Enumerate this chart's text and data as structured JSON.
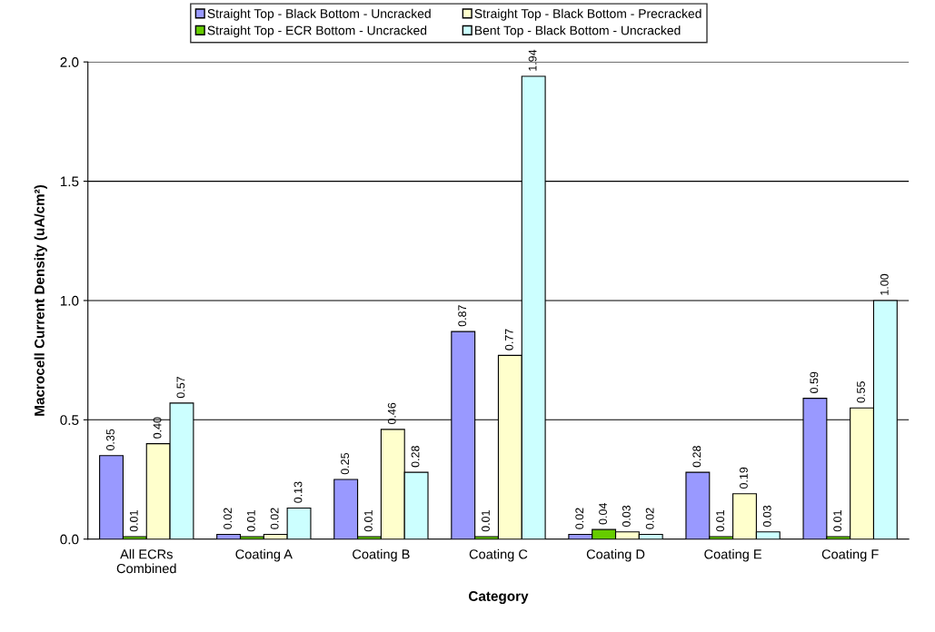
{
  "chart_data": {
    "type": "bar",
    "xlabel": "Category",
    "ylabel": "Macrocell Current Density (uA/cm²)",
    "categories": [
      "All ECRs\nCombined",
      "Coating A",
      "Coating B",
      "Coating C",
      "Coating D",
      "Coating E",
      "Coating F"
    ],
    "series": [
      {
        "name": "Straight Top - Black Bottom - Uncracked",
        "color": "#9999ff",
        "values": [
          0.35,
          0.02,
          0.25,
          0.87,
          0.02,
          0.28,
          0.59
        ],
        "value_labels": [
          "0.35",
          "0.02",
          "0.25",
          "0.87",
          "0.02",
          "0.28",
          "0.59"
        ]
      },
      {
        "name": "Straight Top - ECR Bottom - Uncracked",
        "color": "#66cc00",
        "values": [
          0.01,
          0.01,
          0.01,
          0.01,
          0.04,
          0.01,
          0.01
        ],
        "value_labels": [
          "0.01",
          "0.01",
          "0.01",
          "0.01",
          "0.04",
          "0.01",
          "0.01"
        ]
      },
      {
        "name": "Straight Top - Black Bottom - Precracked",
        "color": "#ffffcc",
        "values": [
          0.4,
          0.02,
          0.46,
          0.77,
          0.03,
          0.19,
          0.55
        ],
        "value_labels": [
          "0.40",
          "0.02",
          "0.46",
          "0.77",
          "0.03",
          "0.19",
          "0.55"
        ]
      },
      {
        "name": "Bent Top - Black Bottom - Uncracked",
        "color": "#ccffff",
        "values": [
          0.57,
          0.13,
          0.28,
          1.94,
          0.02,
          0.03,
          1.0
        ],
        "value_labels": [
          "0.57",
          "0.13",
          "0.28",
          "1.94",
          "0.02",
          "0.03",
          "1.00"
        ]
      }
    ],
    "ylim": [
      0,
      2.0
    ],
    "yticks": [
      {
        "value": 0,
        "label": "0.0"
      },
      {
        "value": 0.5,
        "label": "0.5"
      },
      {
        "value": 1.0,
        "label": "1.0"
      },
      {
        "value": 1.5,
        "label": "1.5"
      },
      {
        "value": 2.0,
        "label": "2.0"
      }
    ],
    "grid": "y",
    "legend": "top"
  }
}
